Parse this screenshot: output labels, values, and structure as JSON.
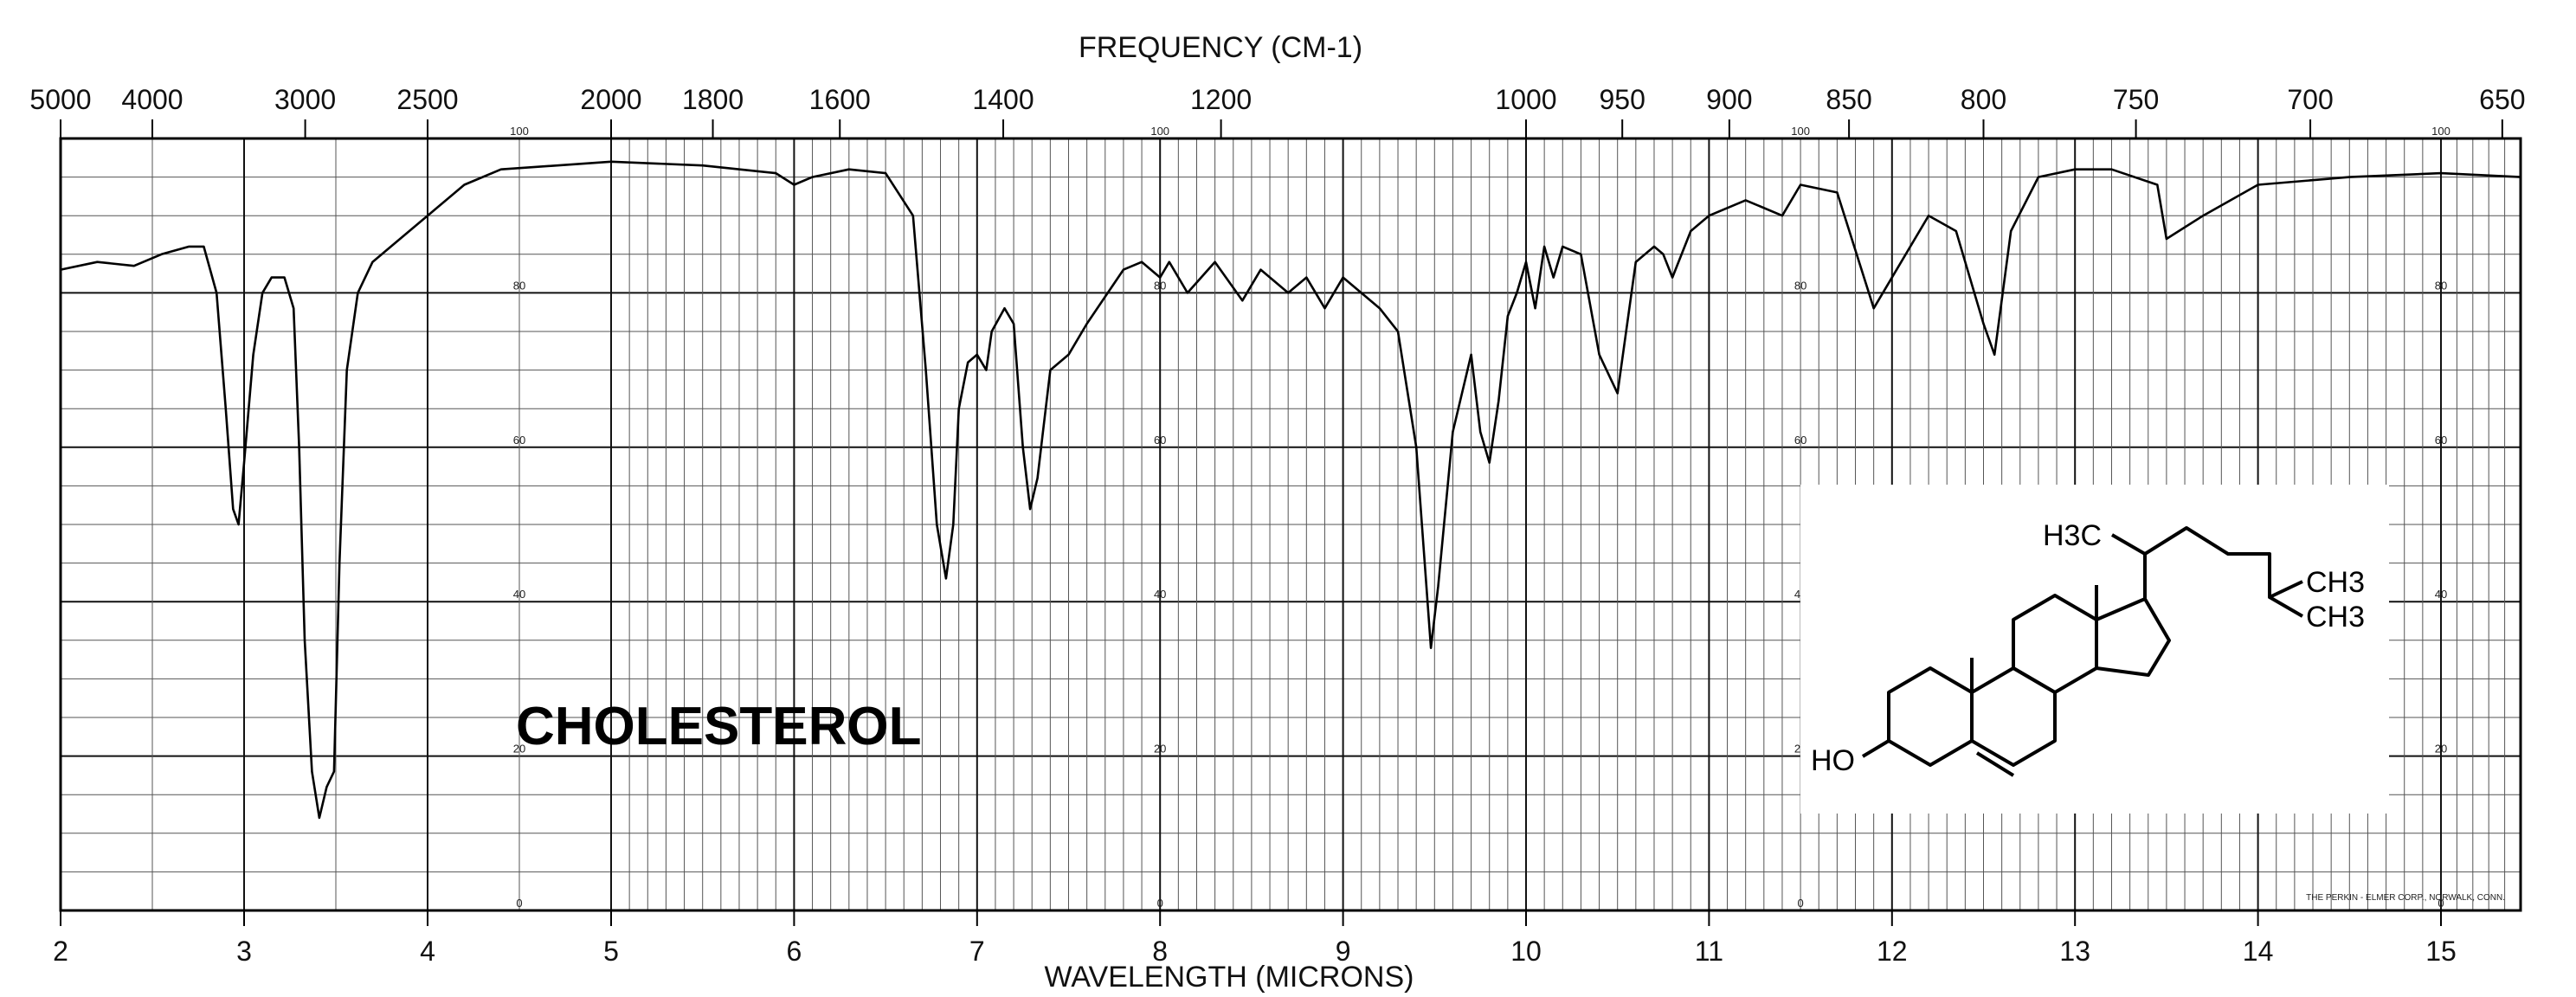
{
  "chart_data": {
    "type": "line",
    "title": "CHOLESTEROL",
    "top_axis_label": "FREQUENCY (CM-1)",
    "xlabel": "WAVELENGTH (MICRONS)",
    "x_range": [
      2,
      15.5
    ],
    "y_range": [
      0,
      100
    ],
    "top_ticks": [
      {
        "label": "5000",
        "wavelength": 2.0
      },
      {
        "label": "4000",
        "wavelength": 2.5
      },
      {
        "label": "3000",
        "wavelength": 3.333
      },
      {
        "label": "2500",
        "wavelength": 4.0
      },
      {
        "label": "2000",
        "wavelength": 5.0
      },
      {
        "label": "1800",
        "wavelength": 5.556
      },
      {
        "label": "1600",
        "wavelength": 6.25
      },
      {
        "label": "1400",
        "wavelength": 7.143
      },
      {
        "label": "1200",
        "wavelength": 8.333
      },
      {
        "label": "1000",
        "wavelength": 10.0
      },
      {
        "label": "950",
        "wavelength": 10.526
      },
      {
        "label": "900",
        "wavelength": 11.111
      },
      {
        "label": "850",
        "wavelength": 11.765
      },
      {
        "label": "800",
        "wavelength": 12.5
      },
      {
        "label": "750",
        "wavelength": 13.333
      },
      {
        "label": "700",
        "wavelength": 14.286
      },
      {
        "label": "650",
        "wavelength": 15.385
      }
    ],
    "bottom_ticks": [
      "2",
      "3",
      "4",
      "5",
      "6",
      "7",
      "8",
      "9",
      "10",
      "11",
      "12",
      "13",
      "14",
      "15"
    ],
    "inner_scale_labels": [
      "100",
      "80",
      "60",
      "40",
      "20",
      "0"
    ],
    "inner_scale_wavelengths": [
      4.5,
      8.0,
      11.5,
      15.0
    ],
    "series": [
      {
        "values": [
          [
            2.0,
            83
          ],
          [
            2.2,
            84
          ],
          [
            2.4,
            83.5
          ],
          [
            2.55,
            85
          ],
          [
            2.7,
            86
          ],
          [
            2.78,
            86
          ],
          [
            2.85,
            80
          ],
          [
            2.9,
            65
          ],
          [
            2.94,
            52
          ],
          [
            2.97,
            50
          ],
          [
            3.0,
            58
          ],
          [
            3.05,
            72
          ],
          [
            3.1,
            80
          ],
          [
            3.15,
            82
          ],
          [
            3.22,
            82
          ],
          [
            3.27,
            78
          ],
          [
            3.3,
            60
          ],
          [
            3.33,
            35
          ],
          [
            3.37,
            18
          ],
          [
            3.41,
            12
          ],
          [
            3.45,
            16
          ],
          [
            3.49,
            18
          ],
          [
            3.52,
            45
          ],
          [
            3.56,
            70
          ],
          [
            3.62,
            80
          ],
          [
            3.7,
            84
          ],
          [
            3.8,
            86
          ],
          [
            4.0,
            90
          ],
          [
            4.2,
            94
          ],
          [
            4.4,
            96
          ],
          [
            5.0,
            97
          ],
          [
            5.5,
            96.5
          ],
          [
            5.9,
            95.5
          ],
          [
            6.0,
            94
          ],
          [
            6.1,
            95
          ],
          [
            6.3,
            96
          ],
          [
            6.5,
            95.5
          ],
          [
            6.65,
            90
          ],
          [
            6.72,
            70
          ],
          [
            6.78,
            50
          ],
          [
            6.83,
            43
          ],
          [
            6.87,
            50
          ],
          [
            6.9,
            65
          ],
          [
            6.95,
            71
          ],
          [
            7.0,
            72
          ],
          [
            7.05,
            70
          ],
          [
            7.08,
            75
          ],
          [
            7.15,
            78
          ],
          [
            7.2,
            76
          ],
          [
            7.25,
            60
          ],
          [
            7.29,
            52
          ],
          [
            7.33,
            56
          ],
          [
            7.36,
            62
          ],
          [
            7.4,
            70
          ],
          [
            7.5,
            72
          ],
          [
            7.6,
            76
          ],
          [
            7.8,
            83
          ],
          [
            7.9,
            84
          ],
          [
            8.0,
            82
          ],
          [
            8.05,
            84
          ],
          [
            8.15,
            80
          ],
          [
            8.3,
            84
          ],
          [
            8.45,
            79
          ],
          [
            8.55,
            83
          ],
          [
            8.7,
            80
          ],
          [
            8.8,
            82
          ],
          [
            8.9,
            78
          ],
          [
            9.0,
            82
          ],
          [
            9.1,
            80
          ],
          [
            9.2,
            78
          ],
          [
            9.3,
            75
          ],
          [
            9.4,
            60
          ],
          [
            9.48,
            34
          ],
          [
            9.52,
            42
          ],
          [
            9.6,
            62
          ],
          [
            9.7,
            72
          ],
          [
            9.75,
            62
          ],
          [
            9.8,
            58
          ],
          [
            9.85,
            66
          ],
          [
            9.9,
            77
          ],
          [
            9.95,
            80
          ],
          [
            10.0,
            84
          ],
          [
            10.05,
            78
          ],
          [
            10.1,
            86
          ],
          [
            10.15,
            82
          ],
          [
            10.2,
            86
          ],
          [
            10.3,
            85
          ],
          [
            10.4,
            72
          ],
          [
            10.5,
            67
          ],
          [
            10.6,
            84
          ],
          [
            10.7,
            86
          ],
          [
            10.75,
            85
          ],
          [
            10.8,
            82
          ],
          [
            10.9,
            88
          ],
          [
            11.0,
            90
          ],
          [
            11.2,
            92
          ],
          [
            11.4,
            90
          ],
          [
            11.5,
            94
          ],
          [
            11.7,
            93
          ],
          [
            11.9,
            78
          ],
          [
            12.0,
            82
          ],
          [
            12.2,
            90
          ],
          [
            12.35,
            88
          ],
          [
            12.5,
            76
          ],
          [
            12.56,
            72
          ],
          [
            12.65,
            88
          ],
          [
            12.8,
            95
          ],
          [
            13.0,
            96
          ],
          [
            13.2,
            96
          ],
          [
            13.45,
            94
          ],
          [
            13.5,
            87
          ],
          [
            13.7,
            90
          ],
          [
            14.0,
            94
          ],
          [
            14.5,
            95
          ],
          [
            15.0,
            95.5
          ],
          [
            15.5,
            95
          ]
        ]
      }
    ],
    "structure": {
      "labels": [
        "H3C",
        "CH3",
        "CH3",
        "HO"
      ]
    },
    "credit": "THE PERKIN - ELMER CORP., NORWALK, CONN."
  }
}
